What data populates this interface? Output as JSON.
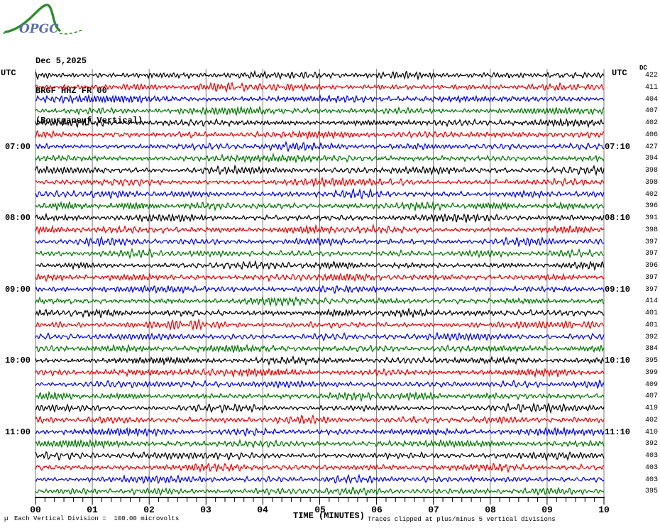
{
  "header": {
    "logo_text": "OPGC",
    "date": "Dec 5,2025",
    "station": "BRGF HHZ FR 00",
    "station_desc": "(Bourganeuf Vertical)"
  },
  "left_axis": {
    "title": "UTC",
    "hour_labels": [
      {
        "row": 6,
        "label": "07:00"
      },
      {
        "row": 12,
        "label": "08:00"
      },
      {
        "row": 18,
        "label": "09:00"
      },
      {
        "row": 24,
        "label": "10:00"
      },
      {
        "row": 30,
        "label": "11:00"
      }
    ]
  },
  "right_axis": {
    "title": "UTC",
    "dc_label": "DC",
    "hour_labels": [
      {
        "row": 6,
        "label": "07:10"
      },
      {
        "row": 12,
        "label": "08:10"
      },
      {
        "row": 18,
        "label": "09:10"
      },
      {
        "row": 24,
        "label": "10:10"
      },
      {
        "row": 30,
        "label": "11:10"
      }
    ]
  },
  "x_axis": {
    "tick_labels": [
      "00",
      "01",
      "02",
      "03",
      "04",
      "05",
      "06",
      "07",
      "08",
      "09",
      "10"
    ],
    "title": "TIME (MINUTES)"
  },
  "footer": {
    "stray_glyph": "µ",
    "scale_note": "Each Vertical Division =  100.00 microvolts",
    "clip_note": "Traces clipped at plus/minus 5 vertical divisions"
  },
  "colors": {
    "black": "#000000",
    "red": "#ee0000",
    "blue": "#0000ee",
    "green": "#007700",
    "grid": "#7b7b7b",
    "logo_green": "#2e8b2e",
    "logo_blue": "#5f6fa8"
  },
  "chart_data": {
    "type": "line",
    "subtype": "helicorder",
    "title": "BRGF HHZ FR 00 (Bourganeuf Vertical) Dec 5,2025",
    "xlabel": "TIME (MINUTES)",
    "x_range_minutes": [
      0,
      10
    ],
    "x_major_tick_minutes": 1,
    "x_minor_ticks_per_major": 6,
    "minutes_per_row": 10,
    "rows": 36,
    "start_time_utc": "06:00",
    "end_time_utc": "11:50",
    "vertical_division_microvolts": 100.0,
    "clip_divisions": 5,
    "traces": [
      {
        "start": "06:00",
        "dc": 422,
        "color": "black"
      },
      {
        "start": "06:10",
        "dc": 411,
        "color": "red"
      },
      {
        "start": "06:20",
        "dc": 404,
        "color": "blue"
      },
      {
        "start": "06:30",
        "dc": 407,
        "color": "green"
      },
      {
        "start": "06:40",
        "dc": 402,
        "color": "black"
      },
      {
        "start": "06:50",
        "dc": 406,
        "color": "red"
      },
      {
        "start": "07:00",
        "dc": 427,
        "color": "blue"
      },
      {
        "start": "07:10",
        "dc": 394,
        "color": "green"
      },
      {
        "start": "07:20",
        "dc": 398,
        "color": "black"
      },
      {
        "start": "07:30",
        "dc": 398,
        "color": "red"
      },
      {
        "start": "07:40",
        "dc": 402,
        "color": "blue"
      },
      {
        "start": "07:50",
        "dc": 396,
        "color": "green"
      },
      {
        "start": "08:00",
        "dc": 391,
        "color": "black"
      },
      {
        "start": "08:10",
        "dc": 398,
        "color": "red"
      },
      {
        "start": "08:20",
        "dc": 397,
        "color": "blue"
      },
      {
        "start": "08:30",
        "dc": 397,
        "color": "green"
      },
      {
        "start": "08:40",
        "dc": 396,
        "color": "black"
      },
      {
        "start": "08:50",
        "dc": 397,
        "color": "red"
      },
      {
        "start": "09:00",
        "dc": 397,
        "color": "blue"
      },
      {
        "start": "09:10",
        "dc": 414,
        "color": "green"
      },
      {
        "start": "09:20",
        "dc": 401,
        "color": "black"
      },
      {
        "start": "09:30",
        "dc": 401,
        "color": "red"
      },
      {
        "start": "09:40",
        "dc": 392,
        "color": "blue"
      },
      {
        "start": "09:50",
        "dc": 384,
        "color": "green"
      },
      {
        "start": "10:00",
        "dc": 395,
        "color": "black"
      },
      {
        "start": "10:10",
        "dc": 399,
        "color": "red"
      },
      {
        "start": "10:20",
        "dc": 409,
        "color": "blue"
      },
      {
        "start": "10:30",
        "dc": 407,
        "color": "green"
      },
      {
        "start": "10:40",
        "dc": 419,
        "color": "black"
      },
      {
        "start": "10:50",
        "dc": 402,
        "color": "red"
      },
      {
        "start": "11:00",
        "dc": 410,
        "color": "blue"
      },
      {
        "start": "11:10",
        "dc": 392,
        "color": "green"
      },
      {
        "start": "11:20",
        "dc": 403,
        "color": "black"
      },
      {
        "start": "11:30",
        "dc": 403,
        "color": "red"
      },
      {
        "start": "11:40",
        "dc": 403,
        "color": "blue"
      },
      {
        "start": "11:50",
        "dc": 395,
        "color": "green"
      }
    ]
  }
}
